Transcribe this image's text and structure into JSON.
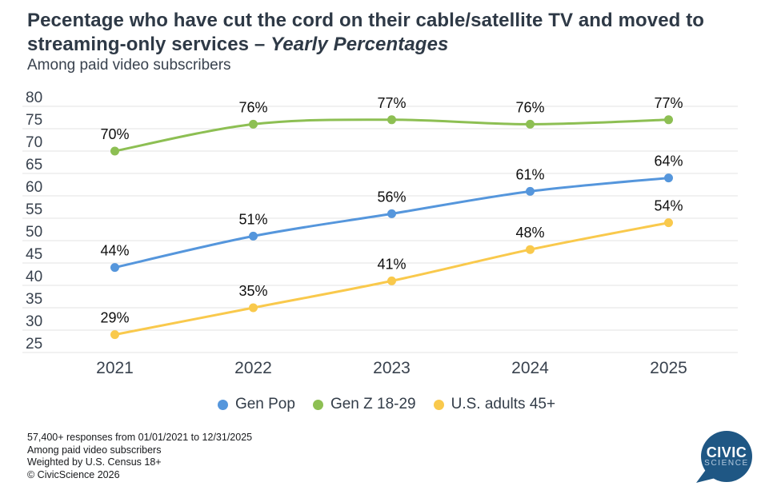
{
  "title": {
    "main": "Pecentage who have cut the cord on their cable/satellite TV and moved to streaming-only services – ",
    "italic": "Yearly Percentages"
  },
  "subtitle": "Among paid video subscribers",
  "chart_data": {
    "type": "line",
    "categories": [
      "2021",
      "2022",
      "2023",
      "2024",
      "2025"
    ],
    "series": [
      {
        "name": "Gen Pop",
        "color": "#5596DC",
        "values": [
          44,
          51,
          56,
          61,
          64
        ]
      },
      {
        "name": "Gen Z 18-29",
        "color": "#8DBF53",
        "values": [
          70,
          76,
          77,
          76,
          77
        ]
      },
      {
        "name": "U.S. adults 45+",
        "color": "#F9C94C",
        "values": [
          29,
          35,
          41,
          48,
          54
        ]
      }
    ],
    "ylim": [
      25,
      80
    ],
    "ytick_step": 5,
    "grid": true,
    "gridline_color": "#e3e3e3",
    "legend_position": "bottom",
    "value_label_suffix": "%",
    "xlabel": "",
    "ylabel": ""
  },
  "footer": {
    "lines": [
      "57,400+ responses from 01/01/2021 to 12/31/2025",
      "Among paid video subscribers",
      "Weighted by U.S. Census 18+",
      "© CivicScience 2026"
    ]
  },
  "logo": {
    "line1": "CIVIC",
    "line2": "SCIENCE",
    "bubble_color": "#1F5784"
  }
}
